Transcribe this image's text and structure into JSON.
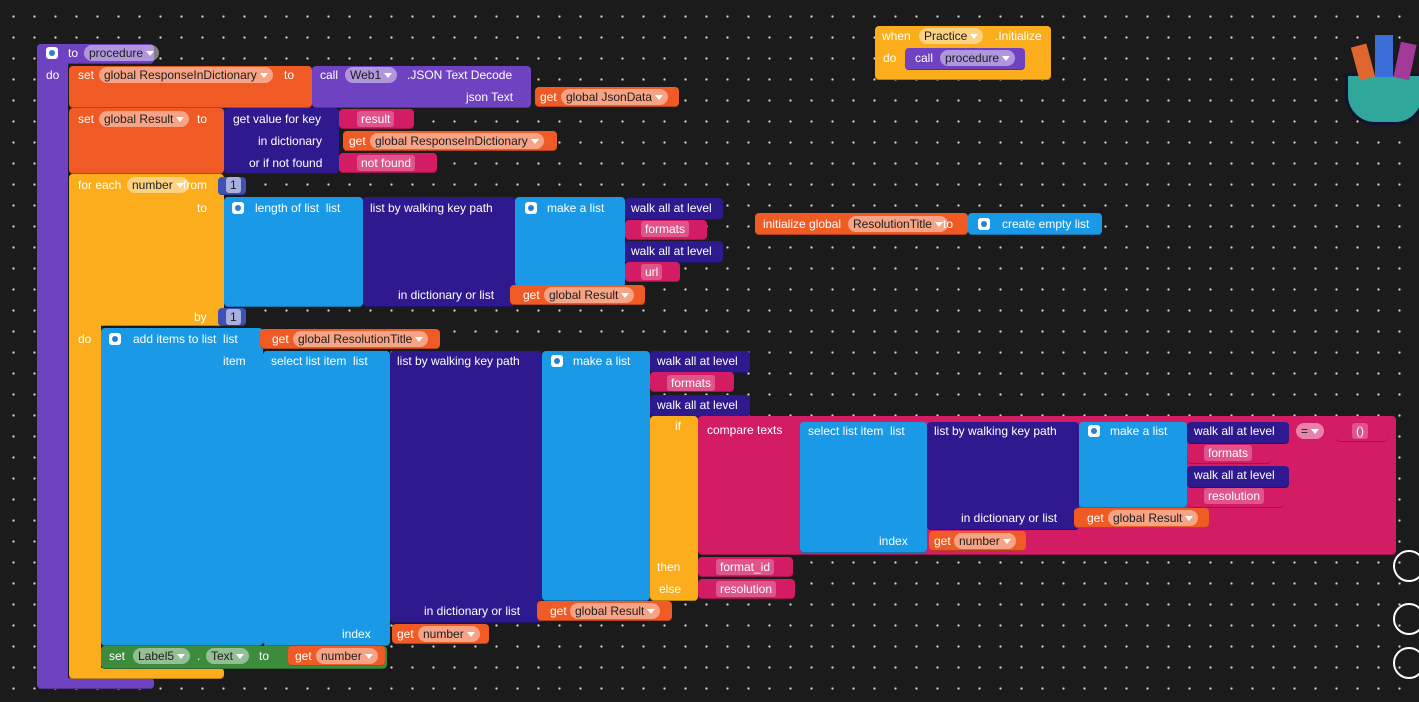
{
  "labels": [
    "to",
    "procedure",
    "do",
    "set",
    "global ResponseInDictionary",
    "to",
    "call",
    "Web1",
    ".JSON Text Decode",
    "json Text",
    "get",
    "global JsonData",
    "set",
    "global Result",
    "to",
    "get value for key",
    "result",
    "in dictionary",
    "get",
    "global ResponseInDictionary",
    "or if not found",
    "not found",
    "for each",
    "number",
    "from",
    "1",
    "to",
    "length of list  list",
    "list by walking key path",
    "make a list",
    "walk all at level",
    "formats",
    "walk all at level",
    "url",
    "in dictionary or list",
    "get",
    "global Result",
    "by",
    "1",
    "do",
    "add items to list  list",
    "get",
    "global ResolutionTitle",
    "item",
    "select list item  list",
    "list by walking key path",
    "make a list",
    "walk all at level",
    "formats",
    "walk all at level",
    "if",
    "compare texts",
    "select list item  list",
    "list by walking key path",
    "make a list",
    "walk all at level",
    "=",
    "()",
    "formats",
    "walk all at level",
    "resolution",
    "in dictionary or list",
    "get",
    "global Result",
    "index",
    "get",
    "number",
    "then",
    "format_id",
    "else",
    "resolution",
    "in dictionary or list",
    "get",
    "global Result",
    "index",
    "get",
    "number",
    "set",
    "Label5",
    ".",
    "Text",
    "to",
    "get",
    "number",
    "when",
    "Practice",
    ".Initialize",
    "do",
    "call",
    "procedure",
    "initialize global",
    "ResolutionTitle",
    "to",
    "create empty list"
  ]
}
